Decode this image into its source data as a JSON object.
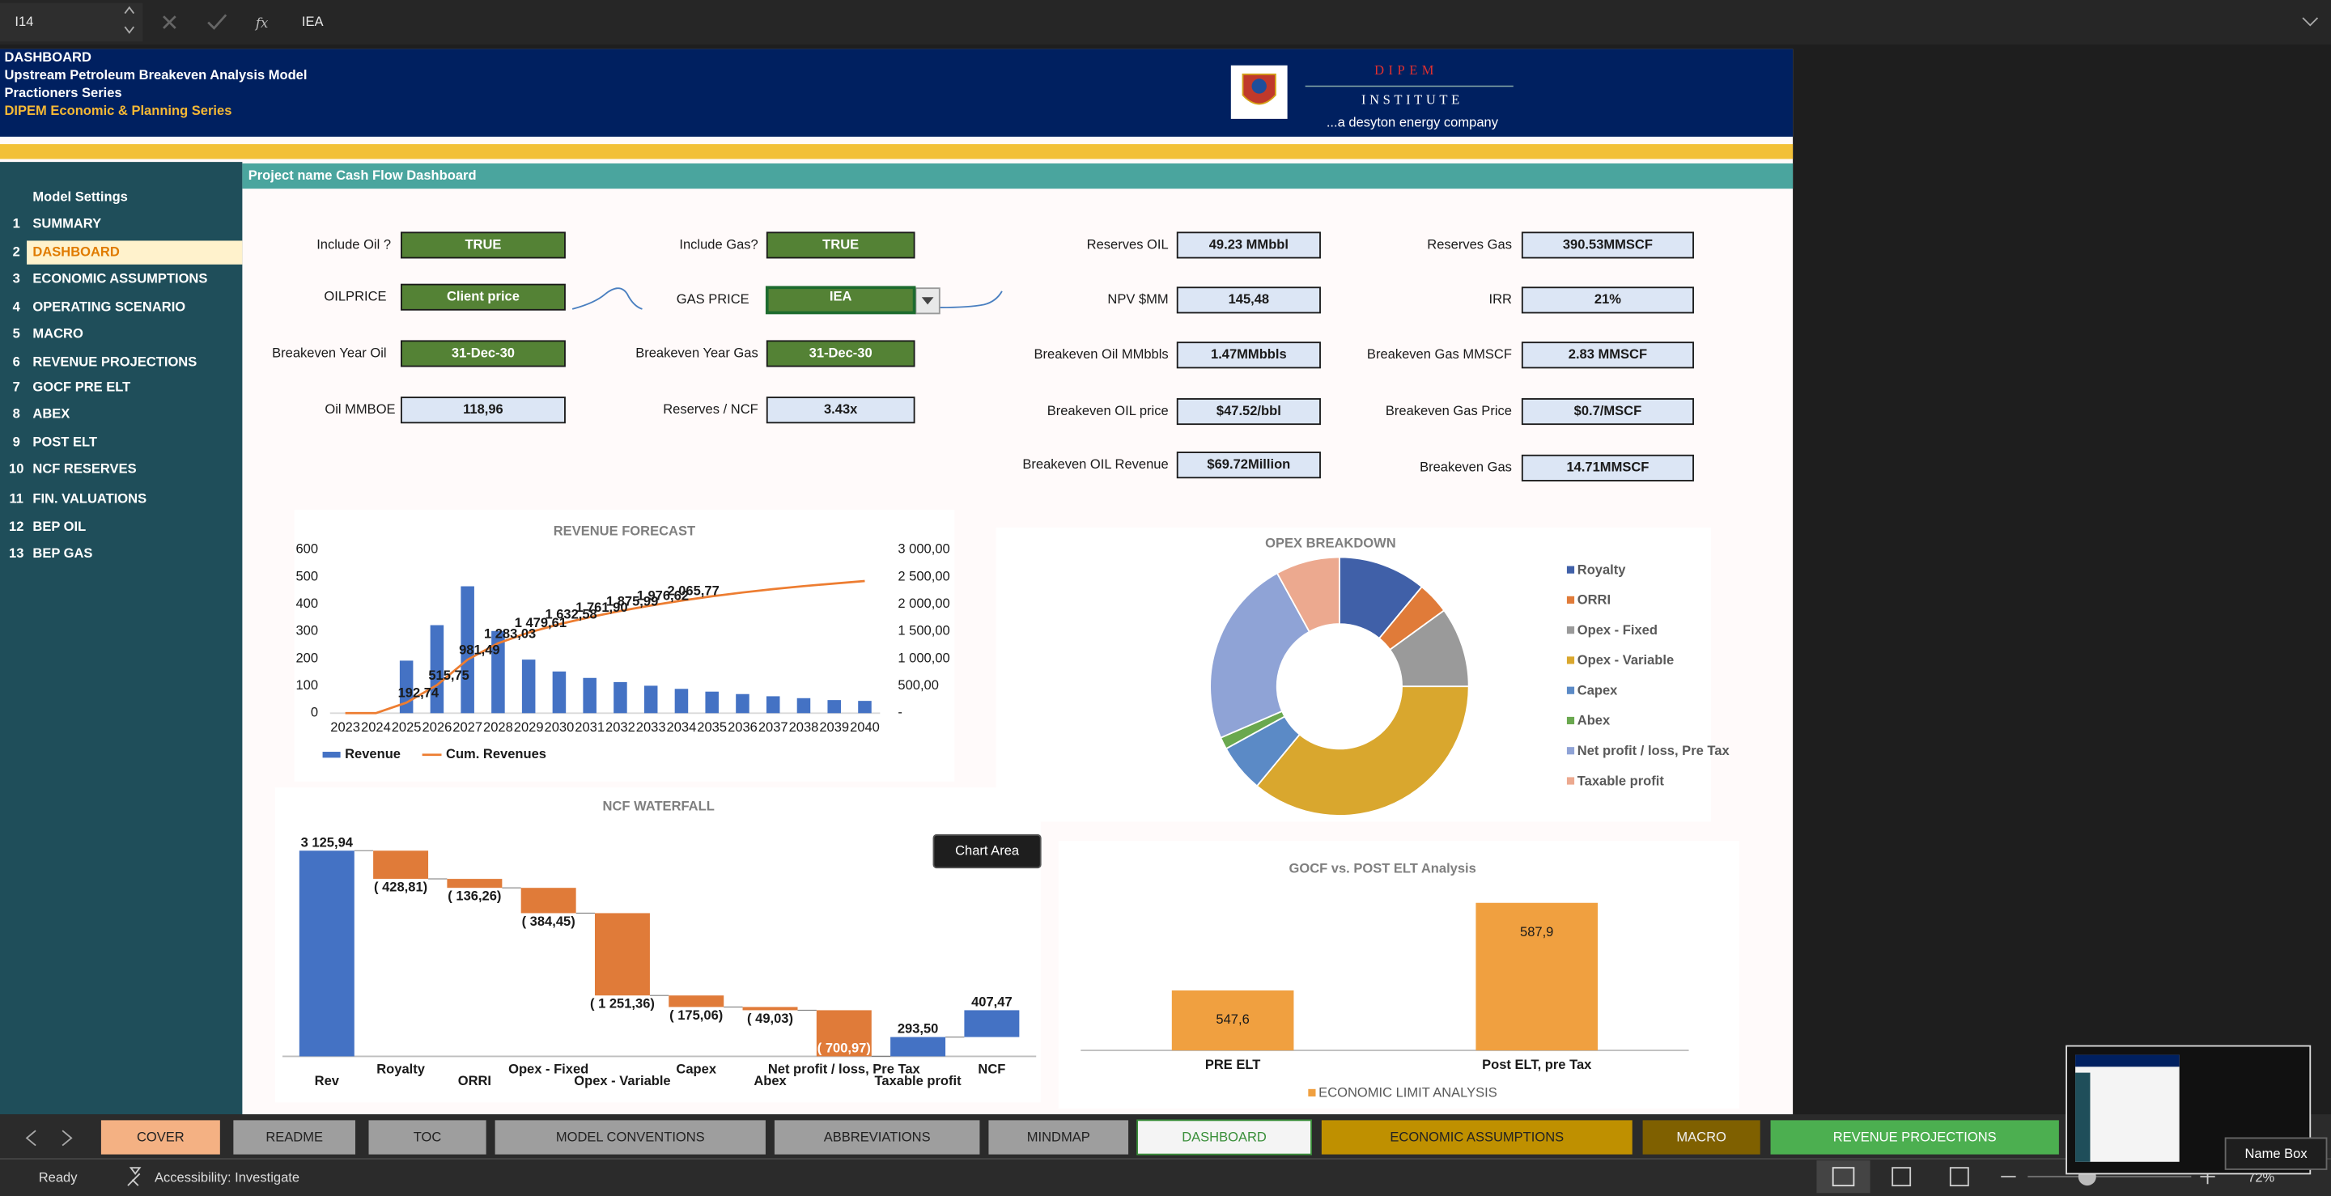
{
  "formula_bar": {
    "name_box": "I14",
    "formula": "IEA"
  },
  "header": {
    "lines": [
      "DASHBOARD",
      "Upstream Petroleum Breakeven Analysis Model",
      "Practioners Series",
      "DIPEM Economic & Planning Series"
    ],
    "logo": {
      "name": "DIPEM",
      "subtitle": "INSTITUTE",
      "tagline": "...a desyton energy company"
    }
  },
  "sidebar": {
    "title": "Model Settings",
    "items": [
      {
        "number": "1",
        "label": "SUMMARY"
      },
      {
        "number": "2",
        "label": "DASHBOARD",
        "selected": true
      },
      {
        "number": "3",
        "label": "ECONOMIC ASSUMPTIONS"
      },
      {
        "number": "4",
        "label": "OPERATING SCENARIO"
      },
      {
        "number": "5",
        "label": "MACRO"
      },
      {
        "number": "6",
        "label": "REVENUE PROJECTIONS"
      },
      {
        "number": "7",
        "label": "GOCF  PRE ELT"
      },
      {
        "number": "8",
        "label": "ABEX"
      },
      {
        "number": "9",
        "label": "POST ELT"
      },
      {
        "number": "10",
        "label": "NCF RESERVES"
      },
      {
        "number": "11",
        "label": "FIN. VALUATIONS"
      },
      {
        "number": "12",
        "label": "BEP OIL"
      },
      {
        "number": "13",
        "label": "BEP GAS"
      }
    ]
  },
  "section_title": "Project name Cash Flow Dashboard",
  "fields": [
    {
      "label": "Include Oil ?",
      "value": "TRUE",
      "fill": "#548235",
      "text_color": "#ffffff"
    },
    {
      "label": "Include Gas?",
      "value": "TRUE",
      "fill": "#548235",
      "text_color": "#ffffff"
    },
    {
      "label": "OILPRICE",
      "value": "Client price",
      "fill": "#548235",
      "text_color": "#ffffff"
    },
    {
      "label": "GAS PRICE",
      "value": "IEA",
      "fill": "#548235",
      "text_color": "#ffffff",
      "selected": true
    },
    {
      "label": "Breakeven Year Oil",
      "value": "31-Dec-30",
      "fill": "#548235",
      "text_color": "#ffffff"
    },
    {
      "label": "Breakeven Year Gas",
      "value": "31-Dec-30",
      "fill": "#548235",
      "text_color": "#ffffff"
    },
    {
      "label": "Oil MMBOE",
      "value": "118,96",
      "fill": "#dce6f5",
      "text_color": "#1a1a1a"
    },
    {
      "label": "Reserves / NCF",
      "value": "3.43x",
      "fill": "#dce6f5",
      "text_color": "#1a1a1a"
    },
    {
      "label": "Reserves OIL",
      "value": "49.23 MMbbl",
      "fill": "#dce6f5",
      "text_color": "#1a1a1a"
    },
    {
      "label": "Reserves Gas",
      "value": "390.53MMSCF",
      "fill": "#dce6f5",
      "text_color": "#1a1a1a"
    },
    {
      "label": "NPV $MM",
      "value": "145,48",
      "fill": "#dce6f5",
      "text_color": "#1a1a1a"
    },
    {
      "label": "IRR",
      "value": "21%",
      "fill": "#dce6f5",
      "text_color": "#1a1a1a"
    },
    {
      "label": "Breakeven Oil MMbbls",
      "value": "1.47MMbbls",
      "fill": "#dce6f5",
      "text_color": "#1a1a1a"
    },
    {
      "label": "Breakeven Gas MMSCF",
      "value": "2.83 MMSCF",
      "fill": "#dce6f5",
      "text_color": "#1a1a1a"
    },
    {
      "label": "Breakeven  OIL price",
      "value": "$47.52/bbl",
      "fill": "#dce6f5",
      "text_color": "#1a1a1a"
    },
    {
      "label": "Breakeven Gas Price",
      "value": "$0.7/MSCF",
      "fill": "#dce6f5",
      "text_color": "#1a1a1a"
    },
    {
      "label": "Breakeven  OIL Revenue",
      "value": "$69.72Million",
      "fill": "#dce6f5",
      "text_color": "#1a1a1a"
    },
    {
      "label": "Breakeven Gas",
      "value": "14.71MMSCF",
      "fill": "#dce6f5",
      "text_color": "#1a1a1a"
    }
  ],
  "chart_data": [
    {
      "type": "bar-line",
      "title": "REVENUE FORECAST",
      "categories": [
        "2023",
        "2024",
        "2025",
        "2026",
        "2027",
        "2028",
        "2029",
        "2030",
        "2031",
        "2032",
        "2033",
        "2034",
        "2035",
        "2036",
        "2037",
        "2038",
        "2039",
        "2040"
      ],
      "series": [
        {
          "name": "Revenue",
          "color": "#4472c4",
          "values": [
            0,
            0,
            192.74,
            323.01,
            465.74,
            301.54,
            196.58,
            152.97,
            129.32,
            114.09,
            100.63,
            89.15,
            79,
            70,
            62,
            55,
            48,
            45
          ]
        },
        {
          "name": "Cum. Revenues",
          "color": "#ed7d31",
          "axis": "y2",
          "values": [
            0,
            0,
            192.74,
            515.75,
            981.49,
            1283.03,
            1479.61,
            1632.58,
            1761.9,
            1875.99,
            1976.62,
            2065.77,
            2144.77,
            2214.77,
            2276.77,
            2331.77,
            2379.77,
            2424.77
          ],
          "value_labels": [
            null,
            null,
            "192,74",
            "515,75",
            "981,49",
            "1 283,03",
            "1 479,61",
            "1 632,58",
            "1 761,90",
            "1 875,99",
            "1 976,62",
            "2 065,77",
            null,
            null,
            null,
            null,
            null,
            null
          ]
        }
      ],
      "ylim": [
        0,
        600
      ],
      "yticks": [
        0,
        100,
        200,
        300,
        400,
        500,
        600
      ],
      "y2lim": [
        0,
        3000
      ],
      "y2ticks": [
        {
          "value": 0,
          "label": "-"
        },
        {
          "value": 500,
          "label": "500,00"
        },
        {
          "value": 1000,
          "label": "1 000,00"
        },
        {
          "value": 1500,
          "label": "1 500,00"
        },
        {
          "value": 2000,
          "label": "2 000,00"
        },
        {
          "value": 2500,
          "label": "2 500,00"
        },
        {
          "value": 3000,
          "label": "3 000,00"
        }
      ]
    },
    {
      "type": "pie",
      "title": "OPEX  BREAKDOWN",
      "categories": [
        "Royalty",
        "ORRI",
        "Opex - Fixed",
        "Opex - Variable",
        "Capex",
        "Abex",
        "Net profit / loss, Pre Tax",
        "Taxable profit"
      ],
      "values": [
        11,
        4,
        10,
        36,
        6,
        1.5,
        23.5,
        8
      ],
      "colors": [
        "#4060a8",
        "#e07b39",
        "#9a9a9a",
        "#d9a72e",
        "#5b8ac6",
        "#6aa84f",
        "#8fa3d6",
        "#eca98f"
      ]
    },
    {
      "type": "waterfall",
      "title": "NCF WATERFALL",
      "categories": [
        "Rev",
        "Royalty",
        "ORRI",
        "Opex - Fixed",
        "Opex - Variable",
        "Capex",
        "Abex",
        "Net profit / loss, Pre Tax",
        "Taxable profit",
        "NCF"
      ],
      "values": [
        3125.94,
        -428.81,
        -136.26,
        -384.45,
        -1251.36,
        -175.06,
        -49.03,
        -700.97,
        293.5,
        407.47
      ],
      "value_labels": [
        "3 125,94",
        "( 428,81)",
        "( 136,26)",
        "( 384,45)",
        "( 1 251,36)",
        "( 175,06)",
        "( 49,03)",
        "( 700,97)",
        "293,50",
        "407,47"
      ],
      "increase_color": "#4472c4",
      "decrease_color": "#e07b39",
      "ylim": [
        0,
        3500
      ]
    },
    {
      "type": "bar",
      "title": "GOCF vs. POST ELT Analysis",
      "categories": [
        "PRE ELT",
        "Post ELT, pre Tax"
      ],
      "values": [
        547.6,
        587.9
      ],
      "value_labels": [
        "547,6",
        "587,9"
      ],
      "series_name": "ECONOMIC LIMIT ANALYSIS",
      "color": "#f0a040",
      "ylim": [
        520,
        600
      ]
    }
  ],
  "tooltip": "Chart Area",
  "sheet_tabs": [
    {
      "label": "COVER",
      "fill": "#f4b183",
      "text_color": "#222222"
    },
    {
      "label": "README",
      "fill": "#9e9e9e",
      "text_color": "#222222"
    },
    {
      "label": "TOC",
      "fill": "#9e9e9e",
      "text_color": "#222222"
    },
    {
      "label": "MODEL CONVENTIONS",
      "fill": "#9e9e9e",
      "text_color": "#222222"
    },
    {
      "label": "ABBREVIATIONS",
      "fill": "#9e9e9e",
      "text_color": "#222222"
    },
    {
      "label": "MINDMAP",
      "fill": "#9e9e9e",
      "text_color": "#222222"
    },
    {
      "label": "DASHBOARD",
      "fill": "#f4f4f4",
      "text_color": "#3a8f3a",
      "selected": true
    },
    {
      "label": "ECONOMIC ASSUMPTIONS",
      "fill": "#bf9000",
      "text_color": "#222222"
    },
    {
      "label": "MACRO",
      "fill": "#7f6000",
      "text_color": "#f0f0f0"
    },
    {
      "label": "REVENUE PROJECTIONS",
      "fill": "#4caf50",
      "text_color": "#ffffff"
    }
  ],
  "status": {
    "state": "Ready",
    "accessibility": "Accessibility: Investigate",
    "zoom": "72%"
  },
  "name_box_tooltip": "Name Box"
}
